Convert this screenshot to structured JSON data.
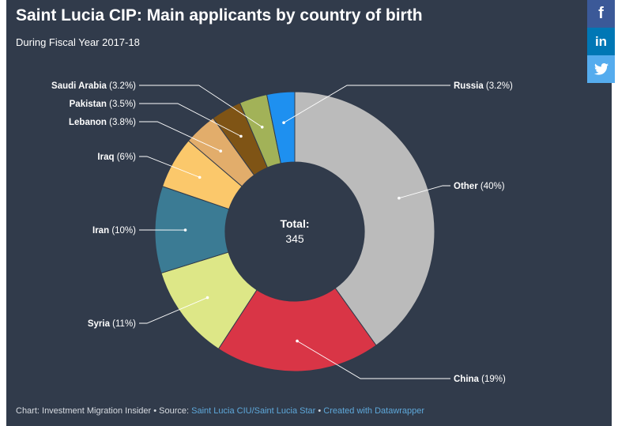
{
  "title": "Saint Lucia CIP: Main applicants by country of birth",
  "subtitle": "During Fiscal Year 2017-18",
  "footer": {
    "chart_credit": "Chart: Investment Migration Insider",
    "source_label": "Source:",
    "source_link": "Saint Lucia CIU/Saint Lucia Star",
    "made_with": "Created with Datawrapper",
    "separator": "•"
  },
  "share": {
    "facebook_icon": "f",
    "linkedin_icon": "in",
    "twitter_icon": "twitter-bird-icon"
  },
  "chart_data": {
    "type": "pie",
    "style": "donut",
    "center_label": "Total:",
    "center_value": "345",
    "slices": [
      {
        "label": "Russia",
        "value": 3.2,
        "display": "(3.2%)",
        "color": "#1e90f0"
      },
      {
        "label": "Other",
        "value": 40,
        "display": "(40%)",
        "color": "#bbbbbb"
      },
      {
        "label": "China",
        "value": 19,
        "display": "(19%)",
        "color": "#d93546"
      },
      {
        "label": "Syria",
        "value": 11,
        "display": "(11%)",
        "color": "#dde787"
      },
      {
        "label": "Iran",
        "value": 10,
        "display": "(10%)",
        "color": "#3b7b94"
      },
      {
        "label": "Iraq",
        "value": 6,
        "display": "(6%)",
        "color": "#fbc86b"
      },
      {
        "label": "Lebanon",
        "value": 3.8,
        "display": "(3.8%)",
        "color": "#e2ad6b"
      },
      {
        "label": "Pakistan",
        "value": 3.5,
        "display": "(3.5%)",
        "color": "#7f5415"
      },
      {
        "label": "Saudi Arabia",
        "value": 3.2,
        "display": "(3.2%)",
        "color": "#a2b258"
      }
    ]
  }
}
